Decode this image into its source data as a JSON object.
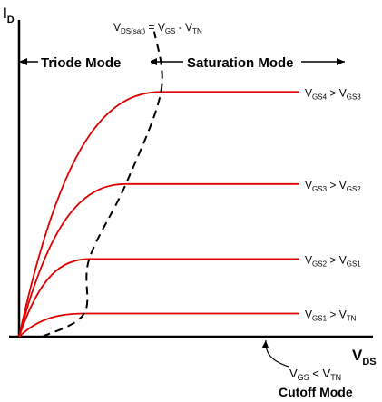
{
  "chart_data": {
    "type": "line",
    "title": "",
    "xlabel": {
      "main": "V",
      "sub": "DS"
    },
    "ylabel": {
      "main": "I",
      "sub": "D"
    },
    "x_range": [
      0,
      10
    ],
    "y_range": [
      0,
      10
    ],
    "grid": false,
    "boundary_curve": {
      "label": [
        {
          "t": "V",
          "role": "main"
        },
        {
          "t": "DS(sat)",
          "role": "sub"
        },
        {
          "t": " = V",
          "role": "main"
        },
        {
          "t": "GS",
          "role": "sub"
        },
        {
          "t": " - V",
          "role": "main"
        },
        {
          "t": "TN",
          "role": "sub"
        }
      ],
      "style": "dashed",
      "color": "#000000"
    },
    "regions": [
      {
        "label": "Triode Mode"
      },
      {
        "label": "Saturation Mode"
      }
    ],
    "cutoff": {
      "label_parts": [
        {
          "t": "V",
          "role": "main"
        },
        {
          "t": "GS",
          "role": "sub"
        },
        {
          "t": " < V",
          "role": "main"
        },
        {
          "t": "TN",
          "role": "sub"
        }
      ],
      "mode_label": "Cutoff Mode"
    },
    "series_color": "#e00000",
    "series": [
      {
        "saturation_x": 1.95,
        "saturation_y": 0.88,
        "label_parts": [
          {
            "t": "V",
            "role": "main"
          },
          {
            "t": "GS1",
            "role": "sub"
          },
          {
            "t": " > V",
            "role": "main"
          },
          {
            "t": "TN",
            "role": "sub"
          }
        ]
      },
      {
        "saturation_x": 2.1,
        "saturation_y": 2.95,
        "label_parts": [
          {
            "t": "V",
            "role": "main"
          },
          {
            "t": "GS2",
            "role": "sub"
          },
          {
            "t": " > V",
            "role": "main"
          },
          {
            "t": "GS1",
            "role": "sub"
          }
        ]
      },
      {
        "saturation_x": 3.2,
        "saturation_y": 5.8,
        "label_parts": [
          {
            "t": "V",
            "role": "main"
          },
          {
            "t": "GS3",
            "role": "sub"
          },
          {
            "t": " > V",
            "role": "main"
          },
          {
            "t": "GS2",
            "role": "sub"
          }
        ]
      },
      {
        "saturation_x": 4.25,
        "saturation_y": 9.3,
        "label_parts": [
          {
            "t": "V",
            "role": "main"
          },
          {
            "t": "GS4",
            "role": "sub"
          },
          {
            "t": " > V",
            "role": "main"
          },
          {
            "t": "GS3",
            "role": "sub"
          }
        ]
      }
    ]
  }
}
